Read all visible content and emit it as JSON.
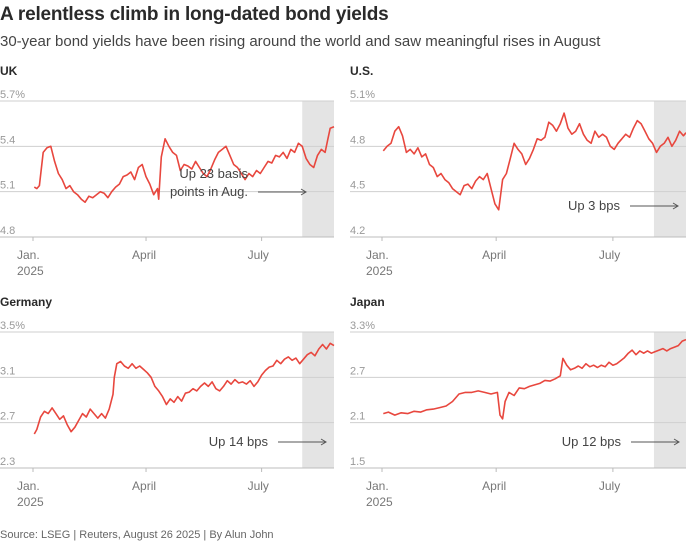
{
  "title": "A relentless climb in long-dated bond yields",
  "subtitle": "30-year bond yields have been rising around the world and saw meaningful rises in August",
  "source": "Source: LSEG | Reuters, August 26 2025 | By Alun John",
  "colors": {
    "line": "#e8473e",
    "shade": "#e4e4e4",
    "grid": "#cfcfcf"
  },
  "chart_data": [
    {
      "type": "line",
      "panel": "UK",
      "title": "UK",
      "unit": "%",
      "ylim": [
        4.8,
        5.7
      ],
      "yticks": [
        "5.7%",
        "5.4",
        "5.1",
        "4.8"
      ],
      "ytick_values": [
        5.7,
        5.4,
        5.1,
        4.8
      ],
      "xticks": [
        {
          "label": [
            "Jan.",
            "2025"
          ],
          "t": 0
        },
        {
          "label": [
            "April"
          ],
          "t": 89
        },
        {
          "label": [
            "July"
          ],
          "t": 180
        }
      ],
      "t_max": 237,
      "highlight_start": 212,
      "annotation": [
        "Up 23 basis",
        "points in Aug."
      ],
      "x": [
        1,
        3,
        5,
        8,
        11,
        14,
        17,
        20,
        23,
        26,
        29,
        32,
        35,
        38,
        41,
        44,
        47,
        50,
        53,
        56,
        59,
        62,
        65,
        68,
        71,
        74,
        77,
        80,
        83,
        86,
        89,
        92,
        95,
        98,
        99,
        101,
        104,
        107,
        110,
        113,
        116,
        119,
        122,
        125,
        128,
        131,
        134,
        137,
        140,
        143,
        146,
        149,
        152,
        155,
        158,
        161,
        164,
        167,
        170,
        173,
        176,
        179,
        182,
        185,
        188,
        191,
        194,
        197,
        200,
        203,
        206,
        209,
        212,
        215,
        218,
        221,
        224,
        227,
        230,
        232,
        234,
        237
      ],
      "values": [
        5.13,
        5.12,
        5.14,
        5.36,
        5.39,
        5.4,
        5.3,
        5.22,
        5.18,
        5.12,
        5.14,
        5.1,
        5.08,
        5.05,
        5.03,
        5.07,
        5.06,
        5.08,
        5.1,
        5.09,
        5.06,
        5.1,
        5.13,
        5.15,
        5.2,
        5.21,
        5.23,
        5.18,
        5.26,
        5.28,
        5.2,
        5.15,
        5.08,
        5.12,
        5.05,
        5.33,
        5.45,
        5.4,
        5.36,
        5.34,
        5.24,
        5.28,
        5.27,
        5.25,
        5.3,
        5.26,
        5.22,
        5.2,
        5.25,
        5.31,
        5.36,
        5.38,
        5.4,
        5.34,
        5.28,
        5.26,
        5.22,
        5.18,
        5.22,
        5.2,
        5.24,
        5.22,
        5.26,
        5.3,
        5.29,
        5.34,
        5.33,
        5.36,
        5.32,
        5.38,
        5.36,
        5.42,
        5.4,
        5.32,
        5.28,
        5.26,
        5.34,
        5.38,
        5.36,
        5.44,
        5.52,
        5.53
      ]
    },
    {
      "type": "line",
      "panel": "U.S.",
      "title": "U.S.",
      "unit": "%",
      "ylim": [
        4.2,
        5.1
      ],
      "yticks": [
        "5.1%",
        "4.8",
        "4.5",
        "4.2"
      ],
      "ytick_values": [
        5.1,
        4.8,
        4.5,
        4.2
      ],
      "xticks": [
        {
          "label": [
            "Jan.",
            "2025"
          ],
          "t": 0
        },
        {
          "label": [
            "April"
          ],
          "t": 89
        },
        {
          "label": [
            "July"
          ],
          "t": 180
        }
      ],
      "t_max": 237,
      "highlight_start": 212,
      "annotation": [
        "Up 3 bps"
      ],
      "x": [
        1,
        4,
        7,
        10,
        13,
        16,
        19,
        22,
        25,
        28,
        31,
        34,
        37,
        40,
        43,
        46,
        49,
        52,
        55,
        58,
        61,
        64,
        67,
        70,
        73,
        76,
        79,
        82,
        85,
        88,
        91,
        94,
        97,
        100,
        103,
        106,
        109,
        112,
        115,
        118,
        121,
        124,
        127,
        130,
        133,
        136,
        139,
        142,
        145,
        148,
        151,
        154,
        157,
        160,
        163,
        166,
        169,
        172,
        175,
        178,
        181,
        184,
        187,
        190,
        193,
        196,
        199,
        202,
        205,
        208,
        211,
        214,
        217,
        220,
        223,
        226,
        229,
        232,
        235,
        237
      ],
      "values": [
        4.77,
        4.8,
        4.82,
        4.9,
        4.93,
        4.87,
        4.76,
        4.78,
        4.75,
        4.79,
        4.73,
        4.75,
        4.68,
        4.66,
        4.6,
        4.62,
        4.58,
        4.56,
        4.52,
        4.5,
        4.48,
        4.54,
        4.55,
        4.52,
        4.57,
        4.6,
        4.58,
        4.62,
        4.52,
        4.42,
        4.38,
        4.58,
        4.62,
        4.72,
        4.82,
        4.78,
        4.75,
        4.68,
        4.72,
        4.78,
        4.85,
        4.84,
        4.86,
        4.96,
        4.94,
        4.9,
        4.95,
        5.02,
        4.92,
        4.88,
        4.9,
        4.95,
        4.88,
        4.84,
        4.82,
        4.9,
        4.86,
        4.88,
        4.86,
        4.8,
        4.78,
        4.82,
        4.85,
        4.88,
        4.86,
        4.92,
        4.97,
        4.95,
        4.9,
        4.85,
        4.82,
        4.76,
        4.8,
        4.82,
        4.86,
        4.8,
        4.84,
        4.9,
        4.87,
        4.89
      ]
    },
    {
      "type": "line",
      "panel": "Germany",
      "title": "Germany",
      "unit": "%",
      "ylim": [
        2.3,
        3.5
      ],
      "yticks": [
        "3.5%",
        "3.1",
        "2.7",
        "2.3"
      ],
      "ytick_values": [
        3.5,
        3.1,
        2.7,
        2.3
      ],
      "xticks": [
        {
          "label": [
            "Jan.",
            "2025"
          ],
          "t": 0
        },
        {
          "label": [
            "April"
          ],
          "t": 89
        },
        {
          "label": [
            "July"
          ],
          "t": 180
        }
      ],
      "t_max": 237,
      "highlight_start": 212,
      "annotation": [
        "Up 14 bps"
      ],
      "x": [
        1,
        3,
        6,
        9,
        12,
        15,
        18,
        21,
        24,
        27,
        30,
        33,
        36,
        39,
        42,
        45,
        48,
        51,
        54,
        57,
        60,
        63,
        64,
        66,
        69,
        72,
        75,
        78,
        81,
        84,
        87,
        90,
        93,
        96,
        99,
        102,
        105,
        108,
        111,
        114,
        117,
        120,
        123,
        126,
        129,
        132,
        135,
        138,
        141,
        144,
        147,
        150,
        153,
        156,
        159,
        162,
        165,
        168,
        171,
        174,
        177,
        180,
        183,
        186,
        189,
        192,
        195,
        198,
        201,
        204,
        207,
        210,
        213,
        216,
        219,
        222,
        225,
        228,
        231,
        234,
        237
      ],
      "values": [
        2.6,
        2.64,
        2.75,
        2.8,
        2.78,
        2.83,
        2.78,
        2.73,
        2.76,
        2.68,
        2.62,
        2.66,
        2.72,
        2.78,
        2.75,
        2.82,
        2.78,
        2.74,
        2.78,
        2.74,
        2.82,
        2.95,
        3.1,
        3.22,
        3.24,
        3.2,
        3.18,
        3.22,
        3.18,
        3.2,
        3.17,
        3.14,
        3.1,
        3.02,
        2.98,
        2.93,
        2.86,
        2.91,
        2.88,
        2.93,
        2.89,
        2.96,
        2.97,
        3,
        2.98,
        3.02,
        3.05,
        3.02,
        3.06,
        3,
        2.98,
        3.02,
        3.07,
        3.04,
        3.08,
        3.05,
        3.06,
        3.04,
        3.07,
        3.02,
        3.06,
        3.12,
        3.16,
        3.19,
        3.2,
        3.25,
        3.22,
        3.26,
        3.28,
        3.25,
        3.27,
        3.22,
        3.26,
        3.3,
        3.32,
        3.29,
        3.35,
        3.39,
        3.35,
        3.4,
        3.38
      ]
    },
    {
      "type": "line",
      "panel": "Japan",
      "title": "Japan",
      "unit": "%",
      "ylim": [
        1.5,
        3.3
      ],
      "yticks": [
        "3.3%",
        "2.7",
        "2.1",
        "1.5"
      ],
      "ytick_values": [
        3.3,
        2.7,
        2.1,
        1.5
      ],
      "xticks": [
        {
          "label": [
            "Jan.",
            "2025"
          ],
          "t": 0
        },
        {
          "label": [
            "April"
          ],
          "t": 89
        },
        {
          "label": [
            "July"
          ],
          "t": 180
        }
      ],
      "t_max": 237,
      "highlight_start": 212,
      "annotation": [
        "Up 12 bps"
      ],
      "x": [
        1,
        5,
        10,
        15,
        20,
        25,
        30,
        35,
        40,
        45,
        50,
        55,
        60,
        65,
        70,
        75,
        80,
        85,
        90,
        92,
        94,
        96,
        99,
        103,
        107,
        111,
        115,
        119,
        123,
        127,
        131,
        135,
        139,
        141,
        144,
        147,
        150,
        153,
        156,
        159,
        162,
        165,
        168,
        171,
        174,
        177,
        180,
        183,
        186,
        189,
        192,
        195,
        198,
        201,
        204,
        207,
        210,
        213,
        216,
        219,
        222,
        225,
        228,
        231,
        234,
        237
      ],
      "values": [
        2.22,
        2.24,
        2.2,
        2.23,
        2.22,
        2.25,
        2.24,
        2.27,
        2.28,
        2.3,
        2.32,
        2.38,
        2.48,
        2.5,
        2.5,
        2.52,
        2.5,
        2.48,
        2.5,
        2.2,
        2.15,
        2.38,
        2.5,
        2.46,
        2.56,
        2.55,
        2.58,
        2.6,
        2.62,
        2.66,
        2.65,
        2.68,
        2.72,
        2.95,
        2.86,
        2.8,
        2.82,
        2.85,
        2.82,
        2.88,
        2.84,
        2.86,
        2.83,
        2.86,
        2.84,
        2.9,
        2.86,
        2.88,
        2.92,
        2.96,
        3.02,
        3.06,
        3.0,
        3.05,
        3.02,
        3.05,
        3.02,
        3.04,
        3.06,
        3.08,
        3.05,
        3.08,
        3.1,
        3.12,
        3.18,
        3.2
      ]
    }
  ]
}
